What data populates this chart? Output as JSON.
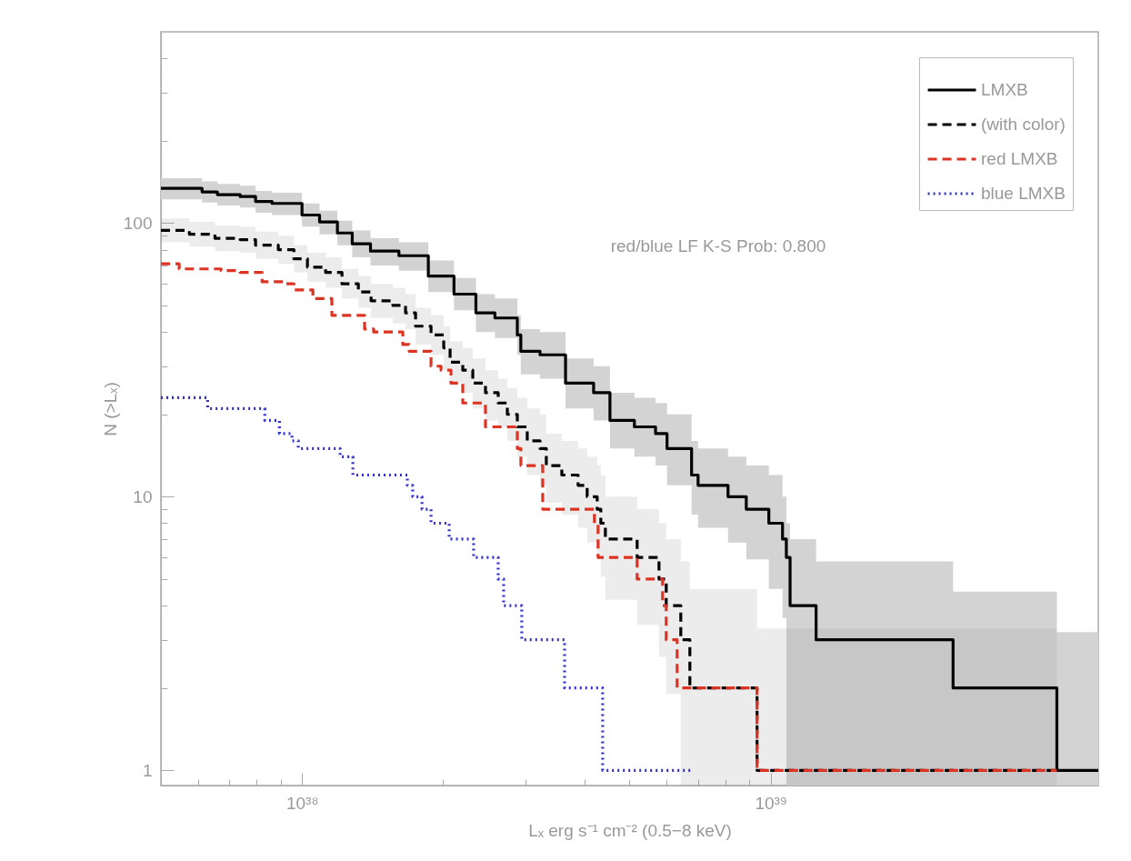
{
  "chart_data": {
    "type": "step",
    "xlabel": "Lₓ erg s⁻¹ cm⁻² (0.5−8 keV)",
    "ylabel": "N (>Lₓ)",
    "log": "xy",
    "legend": "top right",
    "annotations": [
      "red/blue LF K-S Prob: 0.800"
    ],
    "xlim": [
      5e+37,
      5e+39
    ],
    "ylim": [
      0.88,
      500
    ],
    "xticks": [
      {
        "value": 6e+37,
        "label": null
      },
      {
        "value": 7e+37,
        "label": null
      },
      {
        "value": 8e+37,
        "label": null
      },
      {
        "value": 9e+37,
        "label": null
      },
      {
        "value": 1e+38,
        "label": "10³⁸"
      },
      {
        "value": 2e+38,
        "label": null
      },
      {
        "value": 3e+38,
        "label": null
      },
      {
        "value": 4e+38,
        "label": null
      },
      {
        "value": 5e+38,
        "label": null
      },
      {
        "value": 6e+38,
        "label": null
      },
      {
        "value": 7e+38,
        "label": null
      },
      {
        "value": 8e+38,
        "label": null
      },
      {
        "value": 9e+38,
        "label": null
      },
      {
        "value": 1e+39,
        "label": "10³⁹"
      },
      {
        "value": 2e+39,
        "label": null
      },
      {
        "value": 3e+39,
        "label": null
      },
      {
        "value": 4e+39,
        "label": null
      }
    ],
    "yticks": [
      1,
      {
        "value": 2,
        "label": null
      },
      {
        "value": 3,
        "label": null
      },
      {
        "value": 4,
        "label": null
      },
      {
        "value": 5,
        "label": null
      },
      {
        "value": 6,
        "label": null
      },
      {
        "value": 7,
        "label": null
      },
      {
        "value": 8,
        "label": null
      },
      {
        "value": 9,
        "label": null
      },
      10,
      {
        "value": 20,
        "label": null
      },
      {
        "value": 30,
        "label": null
      },
      {
        "value": 40,
        "label": null
      },
      {
        "value": 50,
        "label": null
      },
      {
        "value": 60,
        "label": null
      },
      {
        "value": 70,
        "label": null
      },
      {
        "value": 80,
        "label": null
      },
      {
        "value": 90,
        "label": null
      },
      100,
      {
        "value": 200,
        "label": null
      },
      {
        "value": 300,
        "label": null
      },
      {
        "value": 400,
        "label": null
      }
    ],
    "series": [
      {
        "name": "LMXB",
        "color": "#000000",
        "line_style": "solid",
        "x": [
          5e+37,
          6.12e+37,
          6.6e+37,
          7.38e+37,
          7.96e+37,
          8.63e+37,
          1e+38,
          1.09e+38,
          1.19e+38,
          1.28e+38,
          1.4e+38,
          1.61e+38,
          1.86e+38,
          2.11e+38,
          2.35e+38,
          2.58e+38,
          2.88e+38,
          2.93e+38,
          3.22e+38,
          3.65e+38,
          4.19e+38,
          4.54e+38,
          5.12e+38,
          5.68e+38,
          6.01e+38,
          6.78e+38,
          7e+38,
          8.11e+38,
          8.87e+38,
          9.91e+38,
          1.06e+39,
          1.08e+39,
          1.1e+39,
          1.25e+39,
          2.45e+39,
          4.08e+39,
          5e+39
        ],
        "values": [
          134,
          130,
          127,
          125,
          120,
          118,
          107,
          101,
          92,
          84,
          79,
          76,
          64,
          55,
          47,
          45,
          39,
          34,
          33,
          26,
          24,
          19,
          18,
          17,
          15,
          12,
          11,
          10,
          9,
          8,
          7,
          6,
          4,
          3,
          2,
          1,
          1
        ],
        "upper": [
          146,
          142,
          139,
          137,
          131,
          129,
          118,
          111,
          102,
          94,
          88,
          85,
          73,
          63,
          55,
          53,
          46,
          41,
          40,
          32,
          30,
          24,
          23,
          22,
          20,
          16,
          15,
          14,
          13,
          12,
          10,
          8,
          7,
          5.8,
          4.5,
          3.2,
          3.2
        ],
        "lower": [
          122,
          119,
          116,
          114,
          109,
          107,
          97,
          91,
          83,
          75,
          70,
          67,
          56,
          48,
          40,
          38,
          33,
          28,
          27,
          21,
          19,
          15,
          14,
          13,
          11,
          8.6,
          7.7,
          6.8,
          5.9,
          4.6,
          3.6,
          0.88,
          0.88,
          0.88,
          0.88,
          0.88,
          0.88
        ]
      },
      {
        "name": "(with color)",
        "color": "#000000",
        "line_style": "dashed",
        "x": [
          5e+37,
          5.75e+37,
          6.52e+37,
          7.38e+37,
          7.96e+37,
          8.9e+37,
          9.61e+37,
          1.027e+38,
          1.123e+38,
          1.217e+38,
          1.319e+38,
          1.404e+38,
          1.563e+38,
          1.663e+38,
          1.747e+38,
          1.885e+38,
          2.006e+38,
          2.07e+38,
          2.203e+38,
          2.314e+38,
          2.463e+38,
          2.622e+38,
          2.742e+38,
          2.88e+38,
          3.024e+38,
          3.22e+38,
          3.321e+38,
          3.584e+38,
          3.882e+38,
          4.059e+38,
          4.264e+38,
          4.341e+38,
          4.439e+38,
          5.189e+38,
          5.777e+38,
          5.986e+38,
          6.43e+38,
          6.723e+38,
          9.352e+38,
          4.078e+39
        ],
        "values": [
          94,
          91,
          88,
          87,
          83,
          80,
          74,
          69,
          66,
          60,
          56,
          52,
          50,
          47,
          42,
          39,
          35,
          31,
          29,
          26,
          24,
          22,
          20,
          18,
          16,
          15,
          13,
          12,
          11,
          10,
          9,
          8,
          7,
          6,
          5,
          4,
          3,
          2,
          1,
          1
        ],
        "upper": [
          104,
          101,
          98,
          97,
          93,
          90,
          83,
          78,
          75,
          68,
          64,
          60,
          58,
          55,
          49,
          46,
          42,
          37,
          35,
          32,
          29,
          27,
          25,
          23,
          21,
          20,
          17,
          16,
          15,
          14,
          13,
          12,
          10,
          9,
          8,
          7,
          5.8,
          4.6,
          3.3,
          3.3
        ],
        "lower": [
          85,
          82,
          79,
          78,
          74,
          71,
          66,
          61,
          58,
          53,
          49,
          45,
          43,
          41,
          36,
          33,
          29,
          26,
          24,
          21,
          19,
          18,
          16,
          14,
          12,
          11,
          9.5,
          8.6,
          7.7,
          6.8,
          5.9,
          5.1,
          4.2,
          3.4,
          2.6,
          1.9,
          0.88,
          0.88,
          0.88,
          0.88
        ]
      },
      {
        "name": "red LMXB",
        "color": "#dd3322",
        "line_style": "dashed",
        "x": [
          5e+37,
          5.47e+37,
          6.72e+37,
          7.38e+37,
          8.22e+37,
          9.19e+37,
          9.61e+37,
          1.055e+38,
          1.158e+38,
          1.36e+38,
          1.422e+38,
          1.641e+38,
          1.693e+38,
          1.885e+38,
          1.98e+38,
          2.079e+38,
          2.203e+38,
          2.463e+38,
          2.88e+38,
          2.931e+38,
          3.263e+38,
          4.207e+38,
          4.283e+38,
          5.189e+38,
          5.881e+38,
          5.986e+38,
          6.316e+38,
          9.352e+38,
          4.078e+39
        ],
        "values": [
          71,
          68,
          67,
          66,
          61,
          60,
          57,
          53,
          46,
          41,
          40,
          36,
          34,
          30,
          29,
          26,
          22,
          18,
          15,
          13,
          9,
          8,
          6,
          5,
          4,
          3,
          2,
          1,
          1
        ]
      },
      {
        "name": "blue LMXB",
        "color": "#3333cc",
        "line_style": "dotted",
        "x": [
          5e+37,
          6.29e+37,
          8.33e+37,
          8.95e+37,
          9.52e+37,
          9.82e+37,
          1.206e+38,
          1.284e+38,
          1.678e+38,
          1.723e+38,
          1.803e+38,
          1.885e+38,
          2.061e+38,
          2.324e+38,
          2.622e+38,
          2.693e+38,
          2.944e+38,
          3.633e+38,
          4.38e+38,
          6.783e+38
        ],
        "values": [
          23,
          21,
          19,
          17,
          16,
          15,
          14,
          12,
          11,
          10,
          9,
          8,
          7,
          6,
          5,
          4,
          3,
          2,
          1,
          1
        ]
      }
    ]
  }
}
